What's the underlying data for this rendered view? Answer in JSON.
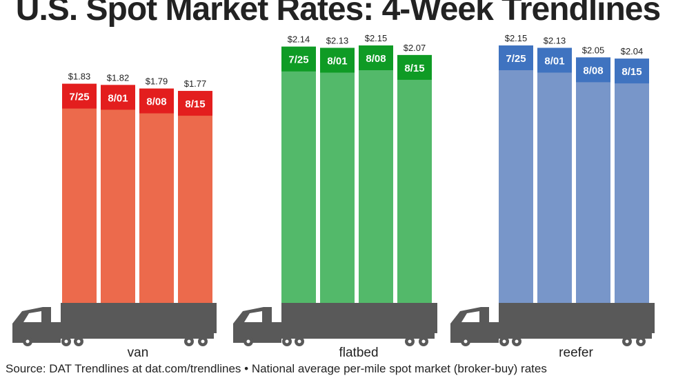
{
  "title": "U.S. Spot Market Rates: 4-Week Trendlines",
  "source": "Source: DAT Trendlines at dat.com/trendlines • National average per-mile spot market (broker-buy) rates",
  "chart_data": {
    "type": "bar",
    "title": "U.S. Spot Market Rates: 4-Week Trendlines",
    "categories": [
      "7/25",
      "8/01",
      "8/08",
      "8/15"
    ],
    "value_prefix": "$",
    "ylim": [
      0,
      2.2
    ],
    "grid": false,
    "legend": "none",
    "series": [
      {
        "name": "van",
        "values": [
          1.83,
          1.82,
          1.79,
          1.77
        ],
        "color": "#ec6a4c",
        "label_color": "#e31e1e"
      },
      {
        "name": "flatbed",
        "values": [
          2.14,
          2.13,
          2.15,
          2.07
        ],
        "color": "#53b96a",
        "label_color": "#0f9b25"
      },
      {
        "name": "reefer",
        "values": [
          2.15,
          2.13,
          2.05,
          2.04
        ],
        "color": "#7896c9",
        "label_color": "#3f73c0"
      }
    ],
    "truck_color": "#595959"
  }
}
